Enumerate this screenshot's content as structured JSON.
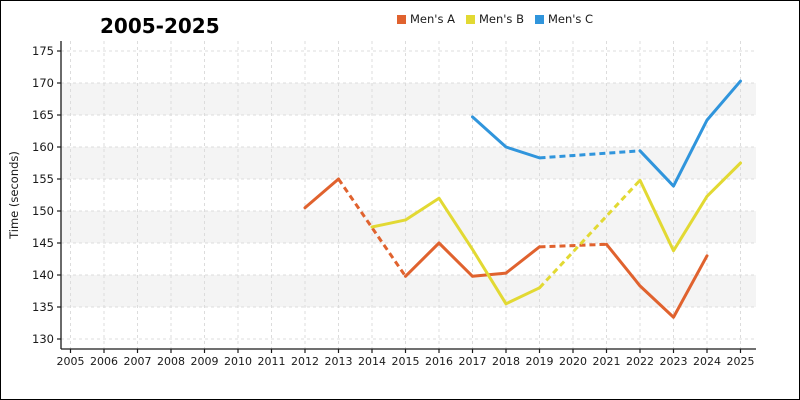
{
  "chart_data": {
    "type": "line",
    "title": "2005-2025",
    "xlabel": "",
    "ylabel": "Time (seconds)",
    "grid": true,
    "legend_position": "top-center",
    "band_color": "#f4f4f4",
    "gridline_color": "#dcdcdc",
    "axis_color": "#1a1a1a",
    "ylim": [
      128,
      177
    ],
    "x_ticks": [
      "2005",
      "2006",
      "2007",
      "2008",
      "2009",
      "2010",
      "2011",
      "2012",
      "2013",
      "2014",
      "2015",
      "2016",
      "2017",
      "2018",
      "2019",
      "2020",
      "2021",
      "2022",
      "2023",
      "2024",
      "2025"
    ],
    "y_ticks": [
      "130",
      "135",
      "140",
      "145",
      "150",
      "155",
      "160",
      "165",
      "170",
      "175"
    ],
    "series": [
      {
        "name": "Men's A",
        "color": "#e0622e",
        "points": [
          [
            2012,
            150.5
          ],
          [
            2013,
            155
          ],
          [
            2015,
            139.8
          ],
          [
            2016,
            145
          ],
          [
            2017,
            139.8
          ],
          [
            2018,
            140.3
          ],
          [
            2019,
            144.4
          ],
          [
            2021,
            144.8
          ],
          [
            2022,
            138.3
          ],
          [
            2023,
            133.4
          ],
          [
            2024,
            143
          ]
        ],
        "dashed_segments": [
          [
            2013,
            2015
          ],
          [
            2019,
            2021
          ]
        ]
      },
      {
        "name": "Men's B",
        "color": "#e2d933",
        "points": [
          [
            2014,
            147.5
          ],
          [
            2015,
            148.6
          ],
          [
            2016,
            152
          ],
          [
            2017,
            144
          ],
          [
            2018,
            135.5
          ],
          [
            2019,
            138
          ],
          [
            2022,
            154.8
          ],
          [
            2023,
            143.8
          ],
          [
            2024,
            152.3
          ],
          [
            2025,
            157.5
          ]
        ],
        "dashed_segments": [
          [
            2019,
            2022
          ]
        ]
      },
      {
        "name": "Men's C",
        "color": "#3095dc",
        "points": [
          [
            2017,
            164.7
          ],
          [
            2018,
            160
          ],
          [
            2019,
            158.3
          ],
          [
            2022,
            159.4
          ],
          [
            2023,
            153.9
          ],
          [
            2024,
            164.2
          ],
          [
            2025,
            170.3
          ]
        ],
        "dashed_segments": [
          [
            2019,
            2022
          ]
        ]
      }
    ]
  }
}
